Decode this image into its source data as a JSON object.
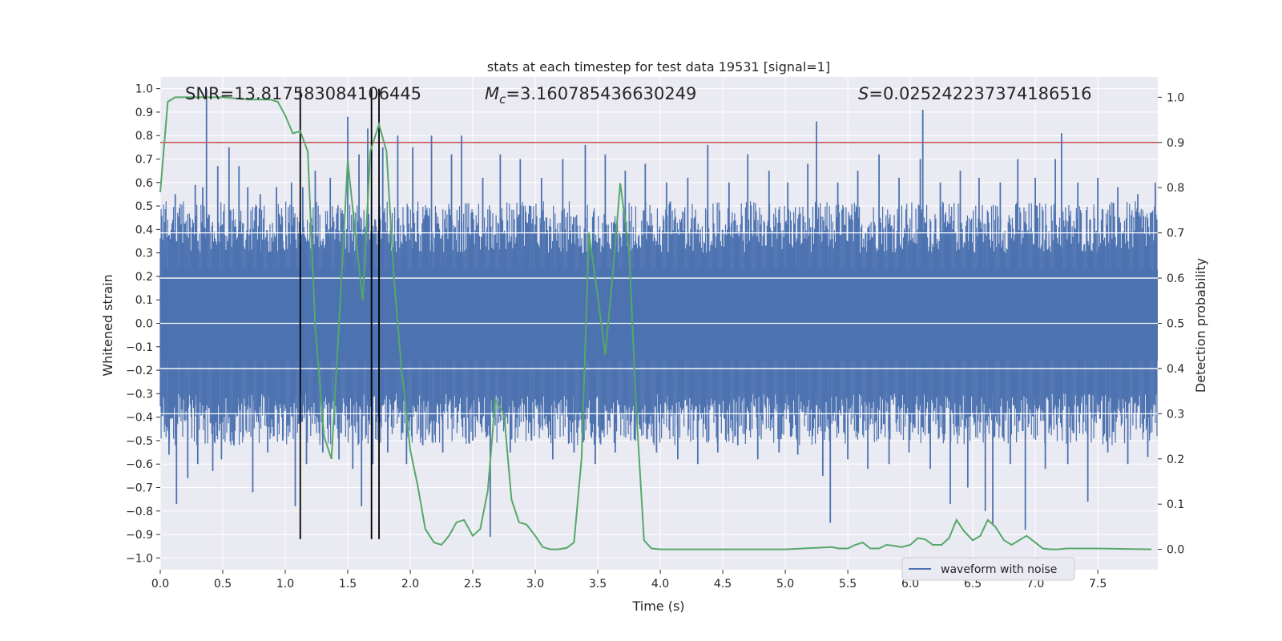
{
  "chart_data": {
    "type": "line",
    "title": "stats at each timestep for test data 19531 [signal=1]",
    "xlabel": "Time (s)",
    "ylabel_left": "Whitened strain",
    "ylabel_right": "Detection probability",
    "xlim": [
      0.0,
      7.98
    ],
    "ylim_left": [
      -1.05,
      1.05
    ],
    "ylim_right": [
      -0.045,
      1.045
    ],
    "x_ticks": [
      0.0,
      0.5,
      1.0,
      1.5,
      2.0,
      2.5,
      3.0,
      3.5,
      4.0,
      4.5,
      5.0,
      5.5,
      6.0,
      6.5,
      7.0,
      7.5
    ],
    "x_tick_labels": [
      "0.0",
      "0.5",
      "1.0",
      "1.5",
      "2.0",
      "2.5",
      "3.0",
      "3.5",
      "4.0",
      "4.5",
      "5.0",
      "5.5",
      "6.0",
      "6.5",
      "7.0",
      "7.5"
    ],
    "y_left_ticks": [
      1.0,
      0.9,
      0.8,
      0.7,
      0.6,
      0.5,
      0.4,
      0.3,
      0.2,
      0.1,
      0.0,
      -0.1,
      -0.2,
      -0.3,
      -0.4,
      -0.5,
      -0.6,
      -0.7,
      -0.8,
      -0.9,
      -1.0
    ],
    "y_left_tick_labels": [
      "1.0",
      "0.9",
      "0.8",
      "0.7",
      "0.6",
      "0.5",
      "0.4",
      "0.3",
      "0.2",
      "0.1",
      "0.0",
      "−0.1",
      "−0.2",
      "−0.3",
      "−0.4",
      "−0.5",
      "−0.6",
      "−0.7",
      "−0.8",
      "−0.9",
      "−1.0"
    ],
    "y_right_ticks": [
      1.0,
      0.9,
      0.8,
      0.7,
      0.6,
      0.5,
      0.4,
      0.3,
      0.2,
      0.1,
      0.0
    ],
    "y_right_tick_labels": [
      "1.0",
      "0.9",
      "0.8",
      "0.7",
      "0.6",
      "0.5",
      "0.4",
      "0.3",
      "0.2",
      "0.1",
      "0.0"
    ],
    "annotations": {
      "snr": "SNR=13.817583084106445",
      "mc_symbol": "M",
      "mc_subscript": "c",
      "mc_value": "=3.160785436630249",
      "s_symbol": "S",
      "s_value": "=0.025242237374186516"
    },
    "threshold": {
      "axis": "right",
      "value": 0.9,
      "color": "#c44e52"
    },
    "event_lines_x": [
      1.12,
      1.69,
      1.75
    ],
    "legend": {
      "label": "waveform with noise",
      "position": "lower-right"
    },
    "waveform": {
      "name": "waveform with noise",
      "color": "#4c72b0",
      "band_low": -0.16,
      "band_high": 0.23,
      "spikes": [
        {
          "x": 0.04,
          "y": 0.32
        },
        {
          "x": 0.07,
          "y": -0.56
        },
        {
          "x": 0.12,
          "y": 0.55
        },
        {
          "x": 0.13,
          "y": -0.77
        },
        {
          "x": 0.22,
          "y": -0.66
        },
        {
          "x": 0.28,
          "y": 0.59
        },
        {
          "x": 0.3,
          "y": -0.6
        },
        {
          "x": 0.34,
          "y": 0.58
        },
        {
          "x": 0.37,
          "y": 1.0
        },
        {
          "x": 0.42,
          "y": -0.63
        },
        {
          "x": 0.46,
          "y": 0.67
        },
        {
          "x": 0.49,
          "y": -0.58
        },
        {
          "x": 0.55,
          "y": 0.75
        },
        {
          "x": 0.59,
          "y": -0.52
        },
        {
          "x": 0.63,
          "y": 0.67
        },
        {
          "x": 0.7,
          "y": 0.58
        },
        {
          "x": 0.74,
          "y": -0.72
        },
        {
          "x": 0.8,
          "y": 0.55
        },
        {
          "x": 0.86,
          "y": -0.55
        },
        {
          "x": 0.93,
          "y": 0.58
        },
        {
          "x": 0.98,
          "y": -0.5
        },
        {
          "x": 1.05,
          "y": 0.6
        },
        {
          "x": 1.08,
          "y": -0.78
        },
        {
          "x": 1.14,
          "y": 0.58
        },
        {
          "x": 1.17,
          "y": -0.6
        },
        {
          "x": 1.24,
          "y": 0.65
        },
        {
          "x": 1.3,
          "y": -0.55
        },
        {
          "x": 1.36,
          "y": 0.62
        },
        {
          "x": 1.43,
          "y": -0.58
        },
        {
          "x": 1.5,
          "y": 0.88
        },
        {
          "x": 1.54,
          "y": -0.62
        },
        {
          "x": 1.59,
          "y": 0.72
        },
        {
          "x": 1.61,
          "y": -0.78
        },
        {
          "x": 1.66,
          "y": 0.83
        },
        {
          "x": 1.7,
          "y": -0.6
        },
        {
          "x": 1.78,
          "y": 0.75
        },
        {
          "x": 1.82,
          "y": -0.55
        },
        {
          "x": 1.9,
          "y": 0.8
        },
        {
          "x": 1.97,
          "y": -0.6
        },
        {
          "x": 2.02,
          "y": 0.75
        },
        {
          "x": 2.1,
          "y": -0.52
        },
        {
          "x": 2.17,
          "y": 0.8
        },
        {
          "x": 2.26,
          "y": -0.55
        },
        {
          "x": 2.33,
          "y": 0.72
        },
        {
          "x": 2.41,
          "y": 0.8
        },
        {
          "x": 2.5,
          "y": -0.5
        },
        {
          "x": 2.58,
          "y": 0.62
        },
        {
          "x": 2.64,
          "y": -0.91
        },
        {
          "x": 2.72,
          "y": 0.72
        },
        {
          "x": 2.8,
          "y": -0.55
        },
        {
          "x": 2.88,
          "y": 0.7
        },
        {
          "x": 2.97,
          "y": -0.5
        },
        {
          "x": 3.05,
          "y": 0.62
        },
        {
          "x": 3.14,
          "y": -0.58
        },
        {
          "x": 3.22,
          "y": 0.7
        },
        {
          "x": 3.31,
          "y": -0.55
        },
        {
          "x": 3.4,
          "y": 0.76
        },
        {
          "x": 3.48,
          "y": -0.6
        },
        {
          "x": 3.56,
          "y": 0.72
        },
        {
          "x": 3.64,
          "y": -0.55
        },
        {
          "x": 3.72,
          "y": 0.65
        },
        {
          "x": 3.8,
          "y": -0.5
        },
        {
          "x": 3.88,
          "y": 0.68
        },
        {
          "x": 3.97,
          "y": -0.55
        },
        {
          "x": 4.05,
          "y": 0.6
        },
        {
          "x": 4.14,
          "y": -0.58
        },
        {
          "x": 4.22,
          "y": 0.62
        },
        {
          "x": 4.3,
          "y": -0.6
        },
        {
          "x": 4.38,
          "y": 0.76
        },
        {
          "x": 4.46,
          "y": -0.55
        },
        {
          "x": 4.55,
          "y": 0.6
        },
        {
          "x": 4.62,
          "y": -0.52
        },
        {
          "x": 4.7,
          "y": 0.72
        },
        {
          "x": 4.78,
          "y": -0.58
        },
        {
          "x": 4.87,
          "y": 0.65
        },
        {
          "x": 4.95,
          "y": -0.55
        },
        {
          "x": 5.02,
          "y": 0.6
        },
        {
          "x": 5.1,
          "y": -0.56
        },
        {
          "x": 5.18,
          "y": 0.68
        },
        {
          "x": 5.25,
          "y": 0.86
        },
        {
          "x": 5.3,
          "y": -0.65
        },
        {
          "x": 5.36,
          "y": -0.85
        },
        {
          "x": 5.42,
          "y": 0.6
        },
        {
          "x": 5.5,
          "y": -0.58
        },
        {
          "x": 5.58,
          "y": 0.65
        },
        {
          "x": 5.66,
          "y": -0.62
        },
        {
          "x": 5.75,
          "y": 0.72
        },
        {
          "x": 5.83,
          "y": -0.6
        },
        {
          "x": 5.91,
          "y": 0.62
        },
        {
          "x": 5.99,
          "y": -0.55
        },
        {
          "x": 6.08,
          "y": 0.7
        },
        {
          "x": 6.1,
          "y": 0.91
        },
        {
          "x": 6.16,
          "y": -0.62
        },
        {
          "x": 6.24,
          "y": 0.6
        },
        {
          "x": 6.32,
          "y": -0.77
        },
        {
          "x": 6.4,
          "y": 0.65
        },
        {
          "x": 6.46,
          "y": -0.7
        },
        {
          "x": 6.55,
          "y": 0.62
        },
        {
          "x": 6.6,
          "y": -0.8
        },
        {
          "x": 6.66,
          "y": -0.86
        },
        {
          "x": 6.72,
          "y": 0.6
        },
        {
          "x": 6.8,
          "y": -0.6
        },
        {
          "x": 6.86,
          "y": 0.7
        },
        {
          "x": 6.92,
          "y": -0.88
        },
        {
          "x": 7.0,
          "y": 0.62
        },
        {
          "x": 7.08,
          "y": -0.62
        },
        {
          "x": 7.16,
          "y": 0.7
        },
        {
          "x": 7.21,
          "y": 0.81
        },
        {
          "x": 7.26,
          "y": -0.6
        },
        {
          "x": 7.34,
          "y": 0.6
        },
        {
          "x": 7.42,
          "y": -0.76
        },
        {
          "x": 7.5,
          "y": 0.62
        },
        {
          "x": 7.58,
          "y": -0.55
        },
        {
          "x": 7.66,
          "y": 0.58
        },
        {
          "x": 7.74,
          "y": -0.6
        },
        {
          "x": 7.82,
          "y": 0.55
        },
        {
          "x": 7.9,
          "y": -0.57
        },
        {
          "x": 7.96,
          "y": 0.6
        }
      ]
    },
    "detection_probability": {
      "name": "detection probability",
      "color": "#55a868",
      "x": [
        0.0,
        0.06,
        0.12,
        0.25,
        0.5,
        0.7,
        0.88,
        0.94,
        1.0,
        1.06,
        1.12,
        1.18,
        1.24,
        1.31,
        1.37,
        1.44,
        1.5,
        1.56,
        1.62,
        1.68,
        1.75,
        1.81,
        1.87,
        1.93,
        2.0,
        2.06,
        2.12,
        2.19,
        2.25,
        2.31,
        2.37,
        2.43,
        2.5,
        2.56,
        2.62,
        2.68,
        2.75,
        2.81,
        2.87,
        2.93,
        3.0,
        3.06,
        3.12,
        3.18,
        3.25,
        3.31,
        3.37,
        3.43,
        3.5,
        3.56,
        3.62,
        3.68,
        3.75,
        3.81,
        3.87,
        3.93,
        4.0,
        4.12,
        4.5,
        5.0,
        5.37,
        5.43,
        5.5,
        5.56,
        5.62,
        5.68,
        5.75,
        5.81,
        5.87,
        5.93,
        6.0,
        6.06,
        6.12,
        6.18,
        6.25,
        6.31,
        6.37,
        6.43,
        6.5,
        6.56,
        6.62,
        6.68,
        6.75,
        6.81,
        6.87,
        6.93,
        7.0,
        7.06,
        7.12,
        7.18,
        7.25,
        7.5,
        7.93
      ],
      "y": [
        0.79,
        0.99,
        1.0,
        1.0,
        1.0,
        0.995,
        0.995,
        0.99,
        0.96,
        0.92,
        0.925,
        0.88,
        0.49,
        0.25,
        0.2,
        0.55,
        0.86,
        0.7,
        0.55,
        0.88,
        0.94,
        0.88,
        0.6,
        0.4,
        0.22,
        0.14,
        0.045,
        0.015,
        0.01,
        0.03,
        0.06,
        0.065,
        0.03,
        0.045,
        0.13,
        0.33,
        0.3,
        0.11,
        0.06,
        0.055,
        0.03,
        0.005,
        0.0,
        0.0,
        0.003,
        0.015,
        0.2,
        0.7,
        0.56,
        0.43,
        0.61,
        0.81,
        0.66,
        0.3,
        0.02,
        0.002,
        0.0,
        0.0,
        0.0,
        0.0,
        0.005,
        0.002,
        0.002,
        0.01,
        0.015,
        0.002,
        0.002,
        0.01,
        0.008,
        0.005,
        0.01,
        0.025,
        0.022,
        0.01,
        0.01,
        0.025,
        0.065,
        0.04,
        0.02,
        0.03,
        0.065,
        0.05,
        0.02,
        0.01,
        0.02,
        0.03,
        0.015,
        0.002,
        0.0,
        0.0,
        0.002,
        0.002,
        0.0
      ]
    }
  }
}
